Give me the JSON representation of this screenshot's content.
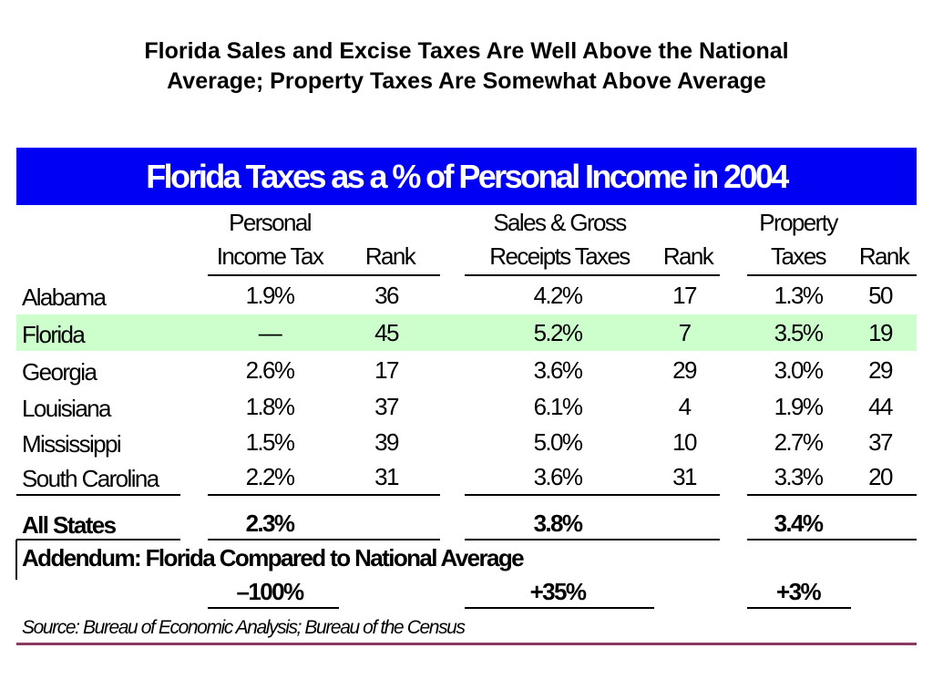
{
  "title_line1": "Florida Sales and Excise Taxes Are Well Above the National",
  "title_line2": "Average; Property Taxes Are Somewhat Above Average",
  "banner": "Florida Taxes as a % of Personal Income in 2004",
  "headers": {
    "pit_line1": "Personal",
    "pit_line2": "Income Tax",
    "rank1": "Rank",
    "sales_line1": "Sales & Gross",
    "sales_line2": "Receipts Taxes",
    "rank2": "Rank",
    "prop_line1": "Property",
    "prop_line2": "Taxes",
    "rank3": "Rank"
  },
  "rows": [
    {
      "state": "Alabama",
      "pit": "1.9%",
      "pit_rank": "36",
      "sales": "4.2%",
      "sales_rank": "17",
      "prop": "1.3%",
      "prop_rank": "50"
    },
    {
      "state": "Florida",
      "pit": "—",
      "pit_rank": "45",
      "sales": "5.2%",
      "sales_rank": "7",
      "prop": "3.5%",
      "prop_rank": "19",
      "highlight": true
    },
    {
      "state": "Georgia",
      "pit": "2.6%",
      "pit_rank": "17",
      "sales": "3.6%",
      "sales_rank": "29",
      "prop": "3.0%",
      "prop_rank": "29"
    },
    {
      "state": "Louisiana",
      "pit": "1.8%",
      "pit_rank": "37",
      "sales": "6.1%",
      "sales_rank": "4",
      "prop": "1.9%",
      "prop_rank": "44"
    },
    {
      "state": "Mississippi",
      "pit": "1.5%",
      "pit_rank": "39",
      "sales": "5.0%",
      "sales_rank": "10",
      "prop": "2.7%",
      "prop_rank": "37"
    },
    {
      "state": "South Carolina",
      "pit": "2.2%",
      "pit_rank": "31",
      "sales": "3.6%",
      "sales_rank": "31",
      "prop": "3.3%",
      "prop_rank": "20"
    }
  ],
  "all_states": {
    "label": "All States",
    "pit": "2.3%",
    "sales": "3.8%",
    "prop": "3.4%"
  },
  "addendum": {
    "label": "Addendum: Florida Compared to National Average",
    "pit": "–100%",
    "sales": "+35%",
    "prop": "+3%"
  },
  "source": "Source: Bureau of Economic Analysis; Bureau of the Census",
  "colors": {
    "banner": "#0000f2",
    "highlight_row": "#ccffcc",
    "footer_rule": "#8b3a62"
  }
}
